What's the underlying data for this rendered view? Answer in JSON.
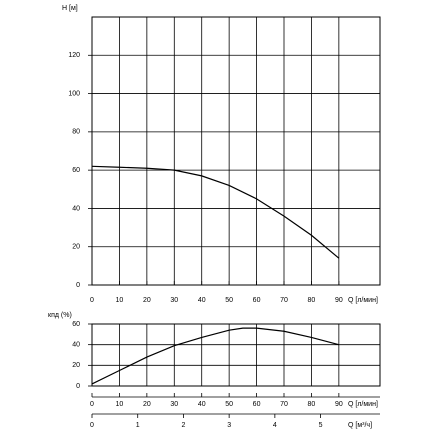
{
  "chart_data": [
    {
      "type": "line",
      "ylabel": "H [м]",
      "xlabel": "Q [л/мин]",
      "x": [
        0,
        10,
        20,
        30,
        40,
        50,
        60,
        70,
        80,
        90
      ],
      "values": [
        62,
        61.5,
        61,
        60,
        57,
        52,
        45,
        36,
        26,
        14
      ],
      "color": "#000000",
      "xlim": [
        0,
        105
      ],
      "xticks": [
        0,
        10,
        20,
        30,
        40,
        50,
        60,
        70,
        80,
        90
      ],
      "ylim": [
        0,
        140
      ],
      "yticks": [
        0,
        20,
        40,
        60,
        80,
        100,
        120
      ],
      "grid": true
    },
    {
      "type": "line",
      "ylabel": "кпд (%)",
      "xlabel": "Q [л/мин]",
      "x": [
        0,
        10,
        20,
        30,
        40,
        50,
        55,
        60,
        70,
        80,
        90
      ],
      "values": [
        2,
        15,
        28,
        39,
        47,
        54,
        56,
        56,
        53,
        47,
        40
      ],
      "color": "#000000",
      "xlim": [
        0,
        105
      ],
      "xticks": [
        0,
        10,
        20,
        30,
        40,
        50,
        60,
        70,
        80,
        90
      ],
      "ylim": [
        0,
        60
      ],
      "yticks": [
        0,
        20,
        40,
        60
      ],
      "grid": true,
      "x2label": "Q [м³/ч]",
      "x2lim": [
        0,
        6.3
      ],
      "x2ticks": [
        0,
        1,
        2,
        3,
        4,
        5
      ]
    }
  ]
}
